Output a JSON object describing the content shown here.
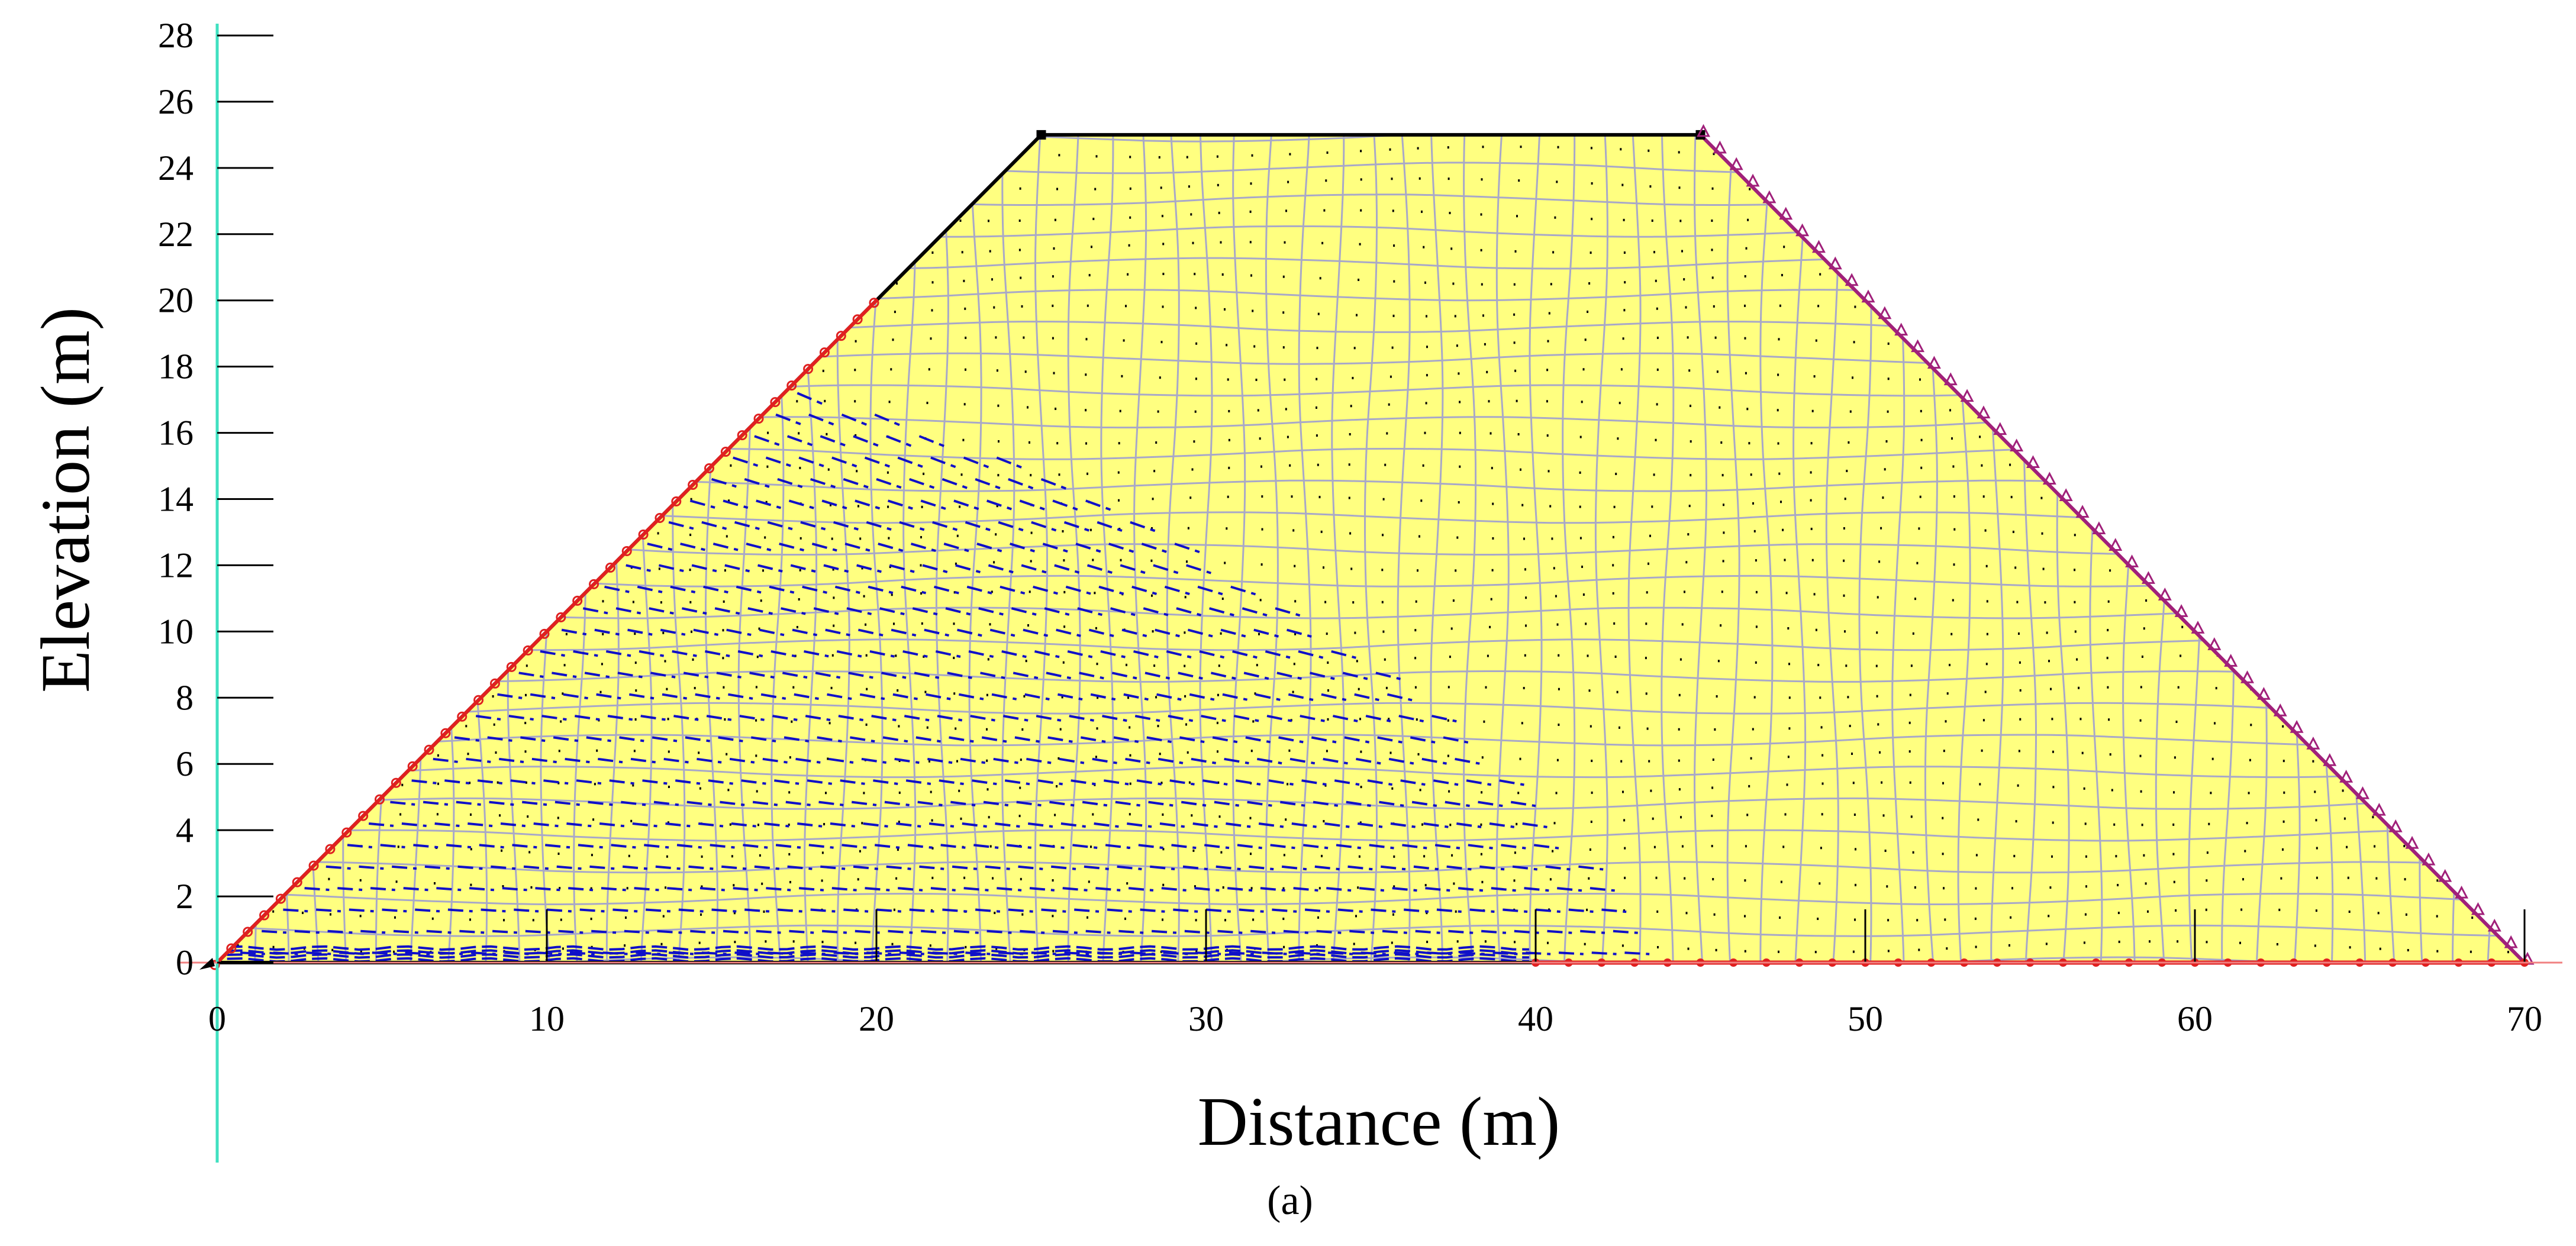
{
  "chart_data": {
    "type": "seepage-mesh",
    "xlabel": "Distance (m)",
    "ylabel": "Elevation (m)",
    "caption": "(a)",
    "xlim": [
      0,
      70
    ],
    "ylim": [
      0,
      28
    ],
    "x_ticks": [
      0,
      10,
      20,
      30,
      40,
      50,
      60,
      70
    ],
    "y_ticks": [
      0,
      2,
      4,
      6,
      8,
      10,
      12,
      14,
      16,
      18,
      20,
      22,
      24,
      26,
      28
    ],
    "dam_geometry": {
      "base_x": [
        0,
        70
      ],
      "crest_x": [
        25,
        45
      ],
      "crest_y": 25,
      "upstream_water_level": 20,
      "drain_start_x": 40
    },
    "flow_region": {
      "upstream_toe_x": 0,
      "seepage_face_x": 43,
      "max_height": 20
    },
    "colors": {
      "fill": "#FFFF80",
      "mesh": "#A8A8C8",
      "outline": "#000000",
      "upstream_boundary": "#E02020",
      "downstream_boundary": "#A0207A",
      "drain_boundary": "#E02020",
      "flow_vectors": "#1010C8",
      "axis_line_vertical": "#40E0C0",
      "axis_line_horizontal": "#F08080"
    }
  }
}
